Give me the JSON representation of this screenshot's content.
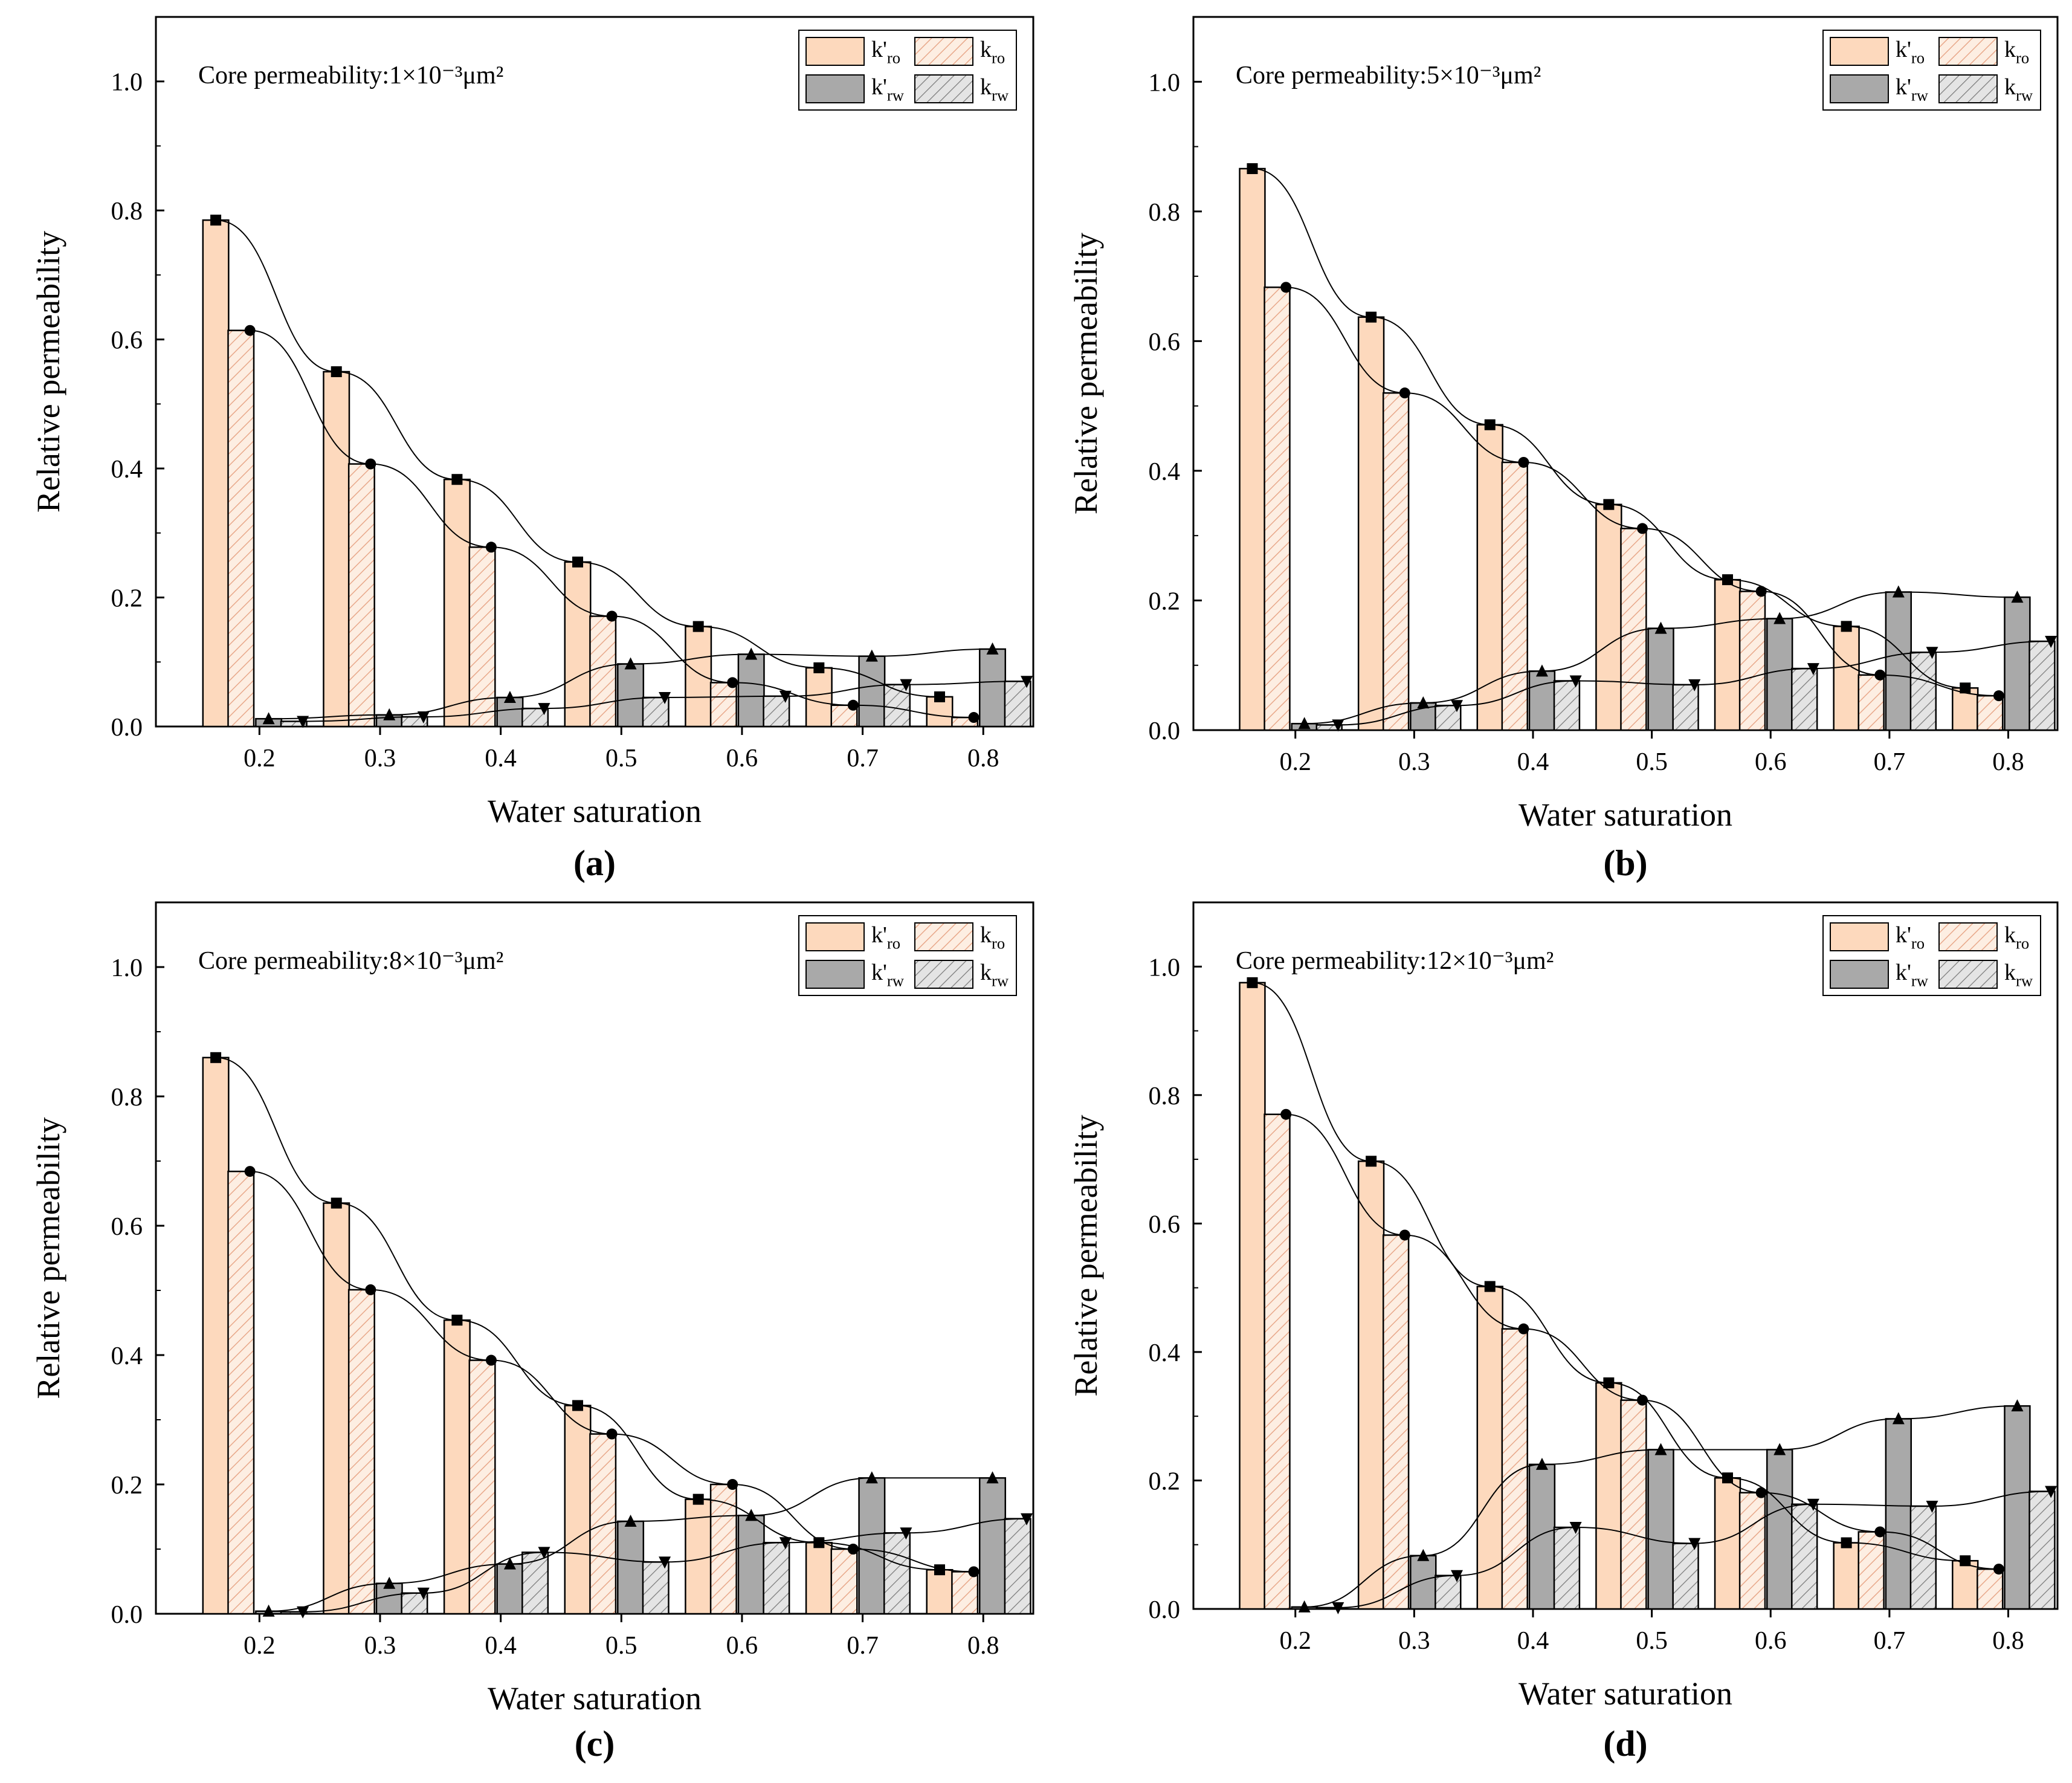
{
  "figure": {
    "legend_labels": {
      "kro_prime": "k'ro",
      "kro": "kro",
      "krw_prime": "k'rw",
      "krw": "krw"
    },
    "colors": {
      "oil_fill": "#fdd9bd",
      "oil_hatch": "#e8a88a",
      "water_fill": "#a9a9a9",
      "water_hatch_fill": "#e4e4e4",
      "water_hatch": "#7a7a7a",
      "axis": "#000000"
    }
  },
  "chart_data": [
    {
      "panel_label": "(a)",
      "type": "bar",
      "title": "Core permeability:1×10⁻³μm²",
      "xlabel": "Water saturation",
      "ylabel": "Relative permeability",
      "categories": [
        "0.2",
        "0.3",
        "0.4",
        "0.5",
        "0.6",
        "0.7",
        "0.8"
      ],
      "ylim": [
        0,
        1.1
      ],
      "yticks": [
        "0.0",
        "0.2",
        "0.4",
        "0.6",
        "0.8",
        "1.0"
      ],
      "legend_position": "top-right",
      "series": [
        {
          "name": "k'ro",
          "values": [
            0.785,
            0.55,
            0.383,
            0.255,
            0.155,
            0.091,
            0.046
          ]
        },
        {
          "name": "kro",
          "values": [
            0.614,
            0.407,
            0.278,
            0.171,
            0.068,
            0.033,
            0.014
          ]
        },
        {
          "name": "k'rw",
          "values": [
            0.012,
            0.018,
            0.045,
            0.097,
            0.112,
            0.109,
            0.12
          ]
        },
        {
          "name": "krw",
          "values": [
            0.008,
            0.015,
            0.028,
            0.045,
            0.047,
            0.065,
            0.07
          ]
        }
      ]
    },
    {
      "panel_label": "(b)",
      "type": "bar",
      "title": "Core permeability:5×10⁻³μm²",
      "xlabel": "Water saturation",
      "ylabel": "Relative permeability",
      "categories": [
        "0.2",
        "0.3",
        "0.4",
        "0.5",
        "0.6",
        "0.7",
        "0.8"
      ],
      "ylim": [
        0,
        1.1
      ],
      "yticks": [
        "0.0",
        "0.2",
        "0.4",
        "0.6",
        "0.8",
        "1.0"
      ],
      "legend_position": "top-right",
      "series": [
        {
          "name": "k'ro",
          "values": [
            0.866,
            0.637,
            0.471,
            0.348,
            0.232,
            0.16,
            0.065
          ]
        },
        {
          "name": "kro",
          "values": [
            0.683,
            0.52,
            0.413,
            0.311,
            0.214,
            0.085,
            0.053
          ]
        },
        {
          "name": "k'rw",
          "values": [
            0.01,
            0.042,
            0.091,
            0.157,
            0.172,
            0.213,
            0.205
          ]
        },
        {
          "name": "krw",
          "values": [
            0.008,
            0.038,
            0.076,
            0.07,
            0.095,
            0.12,
            0.137
          ]
        }
      ]
    },
    {
      "panel_label": "(c)",
      "type": "bar",
      "title": "Core permeability:8×10⁻³μm²",
      "xlabel": "Water saturation",
      "ylabel": "Relative permeability",
      "categories": [
        "0.2",
        "0.3",
        "0.4",
        "0.5",
        "0.6",
        "0.7",
        "0.8"
      ],
      "ylim": [
        0,
        1.1
      ],
      "yticks": [
        "0.0",
        "0.2",
        "0.4",
        "0.6",
        "0.8",
        "1.0"
      ],
      "legend_position": "top-right",
      "series": [
        {
          "name": "k'ro",
          "values": [
            0.86,
            0.635,
            0.454,
            0.322,
            0.177,
            0.11,
            0.068
          ]
        },
        {
          "name": "kro",
          "values": [
            0.684,
            0.501,
            0.392,
            0.278,
            0.2,
            0.1,
            0.065
          ]
        },
        {
          "name": "k'rw",
          "values": [
            0.004,
            0.047,
            0.077,
            0.143,
            0.152,
            0.21,
            0.21
          ]
        },
        {
          "name": "krw",
          "values": [
            0.003,
            0.032,
            0.095,
            0.08,
            0.11,
            0.125,
            0.147
          ]
        }
      ]
    },
    {
      "panel_label": "(d)",
      "type": "bar",
      "title": "Core permeability:12×10⁻³μm²",
      "xlabel": "Water saturation",
      "ylabel": "Relative permeability",
      "categories": [
        "0.2",
        "0.3",
        "0.4",
        "0.5",
        "0.6",
        "0.7",
        "0.8"
      ],
      "ylim": [
        0,
        1.1
      ],
      "yticks": [
        "0.0",
        "0.2",
        "0.4",
        "0.6",
        "0.8",
        "1.0"
      ],
      "legend_position": "top-right",
      "series": [
        {
          "name": "k'ro",
          "values": [
            0.975,
            0.697,
            0.502,
            0.352,
            0.204,
            0.103,
            0.075
          ]
        },
        {
          "name": "kro",
          "values": [
            0.77,
            0.582,
            0.436,
            0.325,
            0.181,
            0.12,
            0.062
          ]
        },
        {
          "name": "k'rw",
          "values": [
            0.003,
            0.083,
            0.225,
            0.248,
            0.248,
            0.296,
            0.316
          ]
        },
        {
          "name": "krw",
          "values": [
            0.002,
            0.052,
            0.127,
            0.102,
            0.163,
            0.16,
            0.183
          ]
        }
      ]
    }
  ]
}
